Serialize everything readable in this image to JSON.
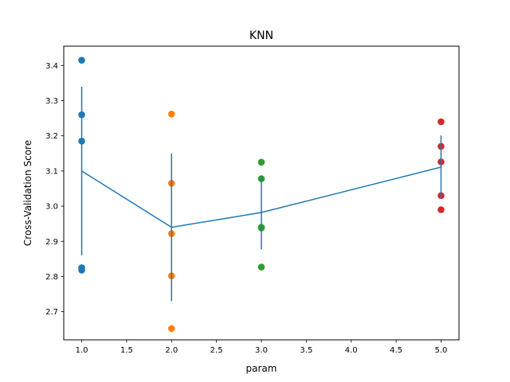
{
  "chart_data": {
    "type": "scatter",
    "title": "KNN",
    "xlabel": "param",
    "ylabel": "Cross-Validation Score",
    "xlim": [
      0.8,
      5.2
    ],
    "ylim": [
      2.62,
      3.455
    ],
    "xticks": [
      1.0,
      1.5,
      2.0,
      2.5,
      3.0,
      3.5,
      4.0,
      4.5,
      5.0
    ],
    "xtick_labels": [
      "1.0",
      "1.5",
      "2.0",
      "2.5",
      "3.0",
      "3.5",
      "4.0",
      "4.5",
      "5.0"
    ],
    "yticks": [
      2.7,
      2.8,
      2.9,
      3.0,
      3.1,
      3.2,
      3.3,
      3.4
    ],
    "ytick_labels": [
      "2.7",
      "2.8",
      "2.9",
      "3.0",
      "3.1",
      "3.2",
      "3.3",
      "3.4"
    ],
    "grid": false,
    "scatter_series": [
      {
        "x": 1,
        "color": "#1f77b4",
        "values": [
          3.415,
          3.26,
          3.185,
          2.825,
          2.818
        ]
      },
      {
        "x": 2,
        "color": "#ff7f0e",
        "values": [
          3.262,
          3.065,
          2.922,
          2.802,
          2.652
        ]
      },
      {
        "x": 3,
        "color": "#2ca02c",
        "values": [
          3.125,
          3.078,
          2.94,
          2.938,
          2.827
        ]
      },
      {
        "x": 5,
        "color": "#d62728",
        "values": [
          3.24,
          3.17,
          3.126,
          3.03,
          2.99
        ]
      }
    ],
    "mean_line": {
      "color": "#1f77b4",
      "x": [
        1,
        2,
        3,
        5
      ],
      "y": [
        3.1,
        2.94,
        2.982,
        3.111
      ],
      "yerr": [
        0.24,
        0.21,
        0.105,
        0.09
      ]
    }
  }
}
